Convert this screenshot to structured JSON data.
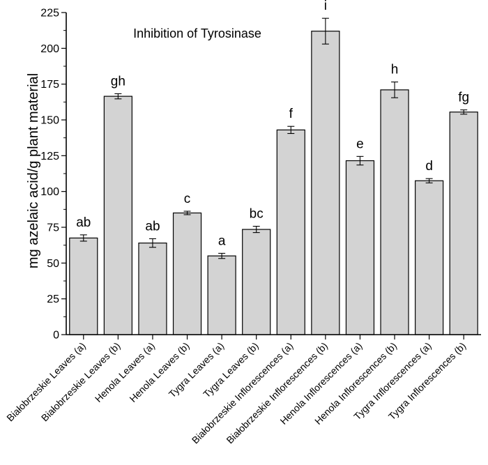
{
  "chart_data": {
    "type": "bar",
    "title": "Inhibition of Tyrosinase",
    "xlabel": "",
    "ylabel": "mg azelaic acid/g plant material",
    "ylim": [
      0,
      225
    ],
    "yticks": [
      0,
      25,
      50,
      75,
      100,
      125,
      150,
      175,
      200,
      225
    ],
    "grid": false,
    "colors": {
      "bar_fill": "#d3d3d3",
      "bar_stroke": "#000000"
    },
    "categories": [
      "Białobrzeskie Leaves (a)",
      "Białobrzeskie Leaves  (b)",
      "Henola Leaves (a)",
      "Henola Leaves  (b)",
      "Tygra Leaves (a)",
      "Tygra Leaves (b)",
      "Białobrzeskie Inflorescences (a)",
      "Białobrzeskie Inflorescences (b)",
      "Henola Inflorescences (a)",
      "Henola Inflorescences (b)",
      "Tygra Inflorescences (a)",
      "Tygra Inflorescences (b)"
    ],
    "values": [
      67.5,
      166.5,
      64,
      85,
      55,
      73.5,
      143,
      212,
      121.5,
      171,
      107.5,
      155.5
    ],
    "errors": [
      2.2,
      1.8,
      3,
      1.2,
      1.8,
      2.2,
      2.5,
      9,
      3,
      5.5,
      1.5,
      1.5
    ],
    "significance_labels": [
      "ab",
      "gh",
      "ab",
      "c",
      "a",
      "bc",
      "f",
      "i",
      "e",
      "h",
      "d",
      "fg"
    ]
  }
}
